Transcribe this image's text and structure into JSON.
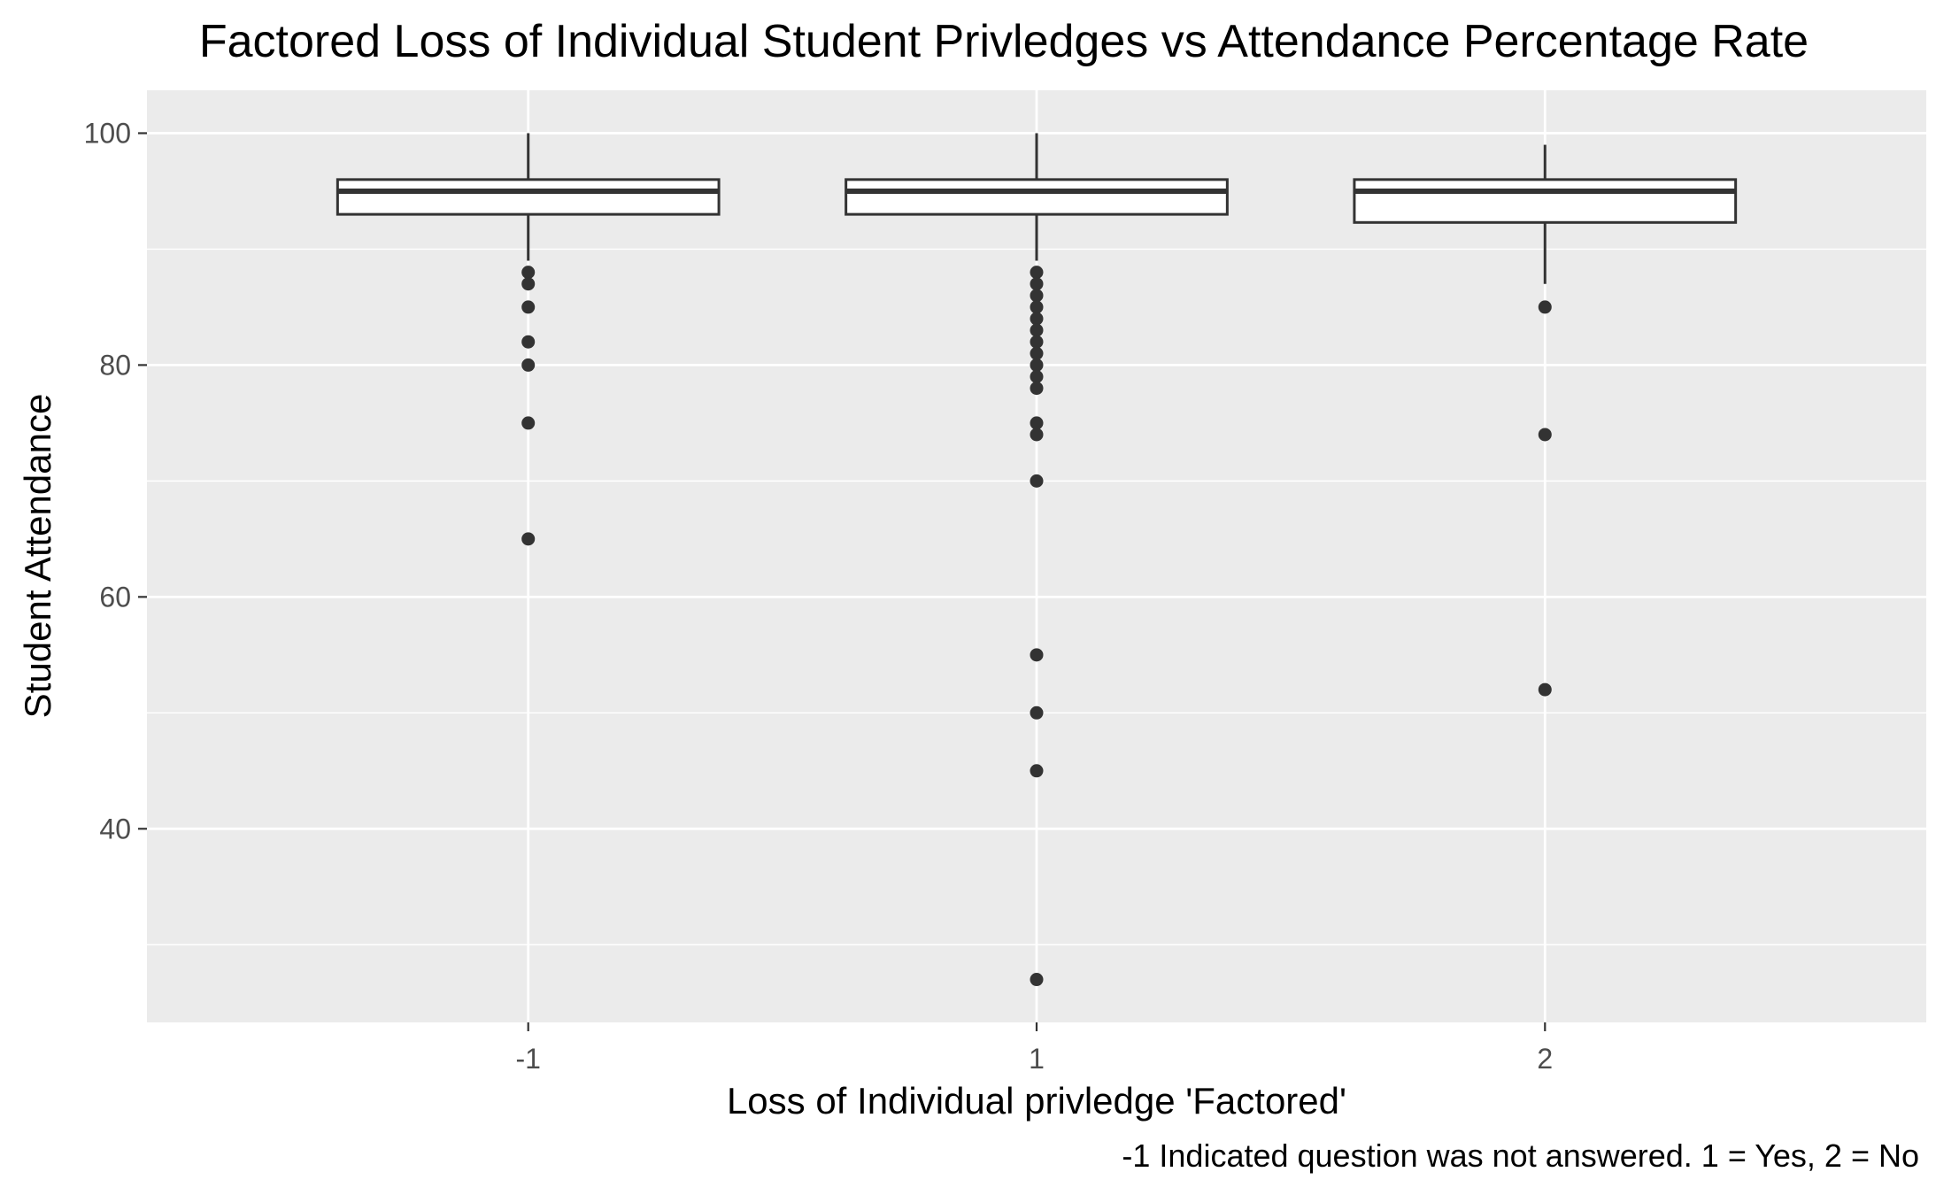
{
  "chart_data": {
    "type": "boxplot",
    "title": "Factored Loss of Individual Student Privledges vs Attendance Percentage Rate",
    "xlabel": "Loss of Individual privledge 'Factored'",
    "ylabel": "Student Attendance",
    "caption": "-1 Indicated question was not answered.  1 = Yes, 2 = No",
    "categories": [
      "-1",
      "1",
      "2"
    ],
    "y_ticks": [
      "40",
      "60",
      "80",
      "100"
    ],
    "ylim": [
      23.3,
      103.7
    ],
    "grid": true,
    "colors": {
      "panel": "#ebebeb",
      "grid": "#ffffff",
      "box_outline": "#333333",
      "box_fill": "#ffffff",
      "points": "#333333"
    },
    "boxes": [
      {
        "category": "-1",
        "whisker_low": 89,
        "q1": 93,
        "median": 95,
        "q3": 96,
        "whisker_high": 100,
        "outliers": [
          88,
          87,
          85,
          82,
          80,
          75,
          65
        ]
      },
      {
        "category": "1",
        "whisker_low": 89,
        "q1": 93,
        "median": 95,
        "q3": 96,
        "whisker_high": 100,
        "outliers": [
          88,
          87,
          86,
          85,
          84,
          83,
          82,
          81,
          80,
          79,
          78,
          75,
          74,
          70,
          55,
          50,
          45,
          27
        ]
      },
      {
        "category": "2",
        "whisker_low": 87,
        "q1": 92.3,
        "median": 95,
        "q3": 96,
        "whisker_high": 99,
        "outliers": [
          85,
          74,
          52
        ]
      }
    ]
  }
}
